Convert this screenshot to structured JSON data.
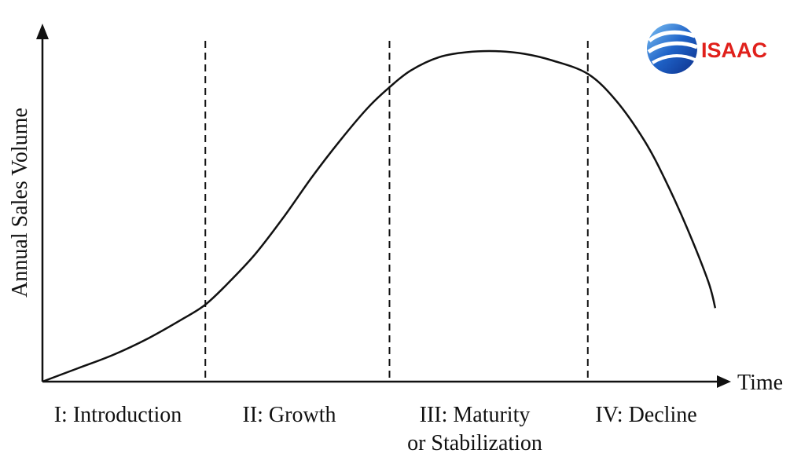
{
  "chart_data": {
    "type": "line",
    "title": "",
    "xlabel": "Time",
    "ylabel": "Annual Sales Volume",
    "grid": false,
    "stages": [
      "I: Introduction",
      "II:  Growth",
      "III:  Maturity",
      "IV:  Decline"
    ],
    "stage_subtitle": "or Stabilization",
    "xlim": [
      0,
      100
    ],
    "ylim": [
      0,
      100
    ],
    "boundaries": [
      23,
      49,
      77
    ],
    "series": [
      {
        "x": [
          0,
          5,
          10,
          15,
          20,
          23,
          26,
          30,
          34,
          38,
          42,
          46,
          49,
          52,
          56,
          60,
          64,
          68,
          72,
          77,
          81,
          85,
          88,
          91,
          94,
          95
        ],
        "values": [
          0,
          4,
          8,
          13,
          19,
          23,
          29,
          38,
          49,
          61,
          72,
          82,
          88,
          93,
          97,
          98.5,
          98.8,
          98,
          96,
          92,
          84,
          72,
          60,
          46,
          30,
          22
        ]
      }
    ]
  },
  "brand": {
    "name": "ISAAC",
    "text_color": "#e0201b",
    "icon_color": "#1f63c8",
    "icon": "globe-swoosh-icon"
  },
  "colors": {
    "ink": "#111111",
    "background": "#ffffff"
  }
}
